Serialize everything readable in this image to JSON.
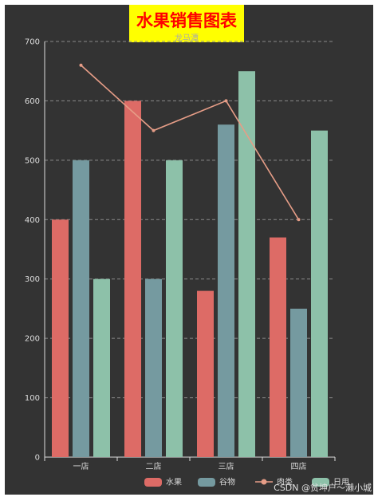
{
  "chart_data": {
    "type": "bar",
    "title": "水果销售图表",
    "subtitle": "龙马潭",
    "categories": [
      "一店",
      "二店",
      "三店",
      "四店"
    ],
    "series": [
      {
        "name": "水果",
        "type": "bar",
        "color": "#dd6b66",
        "values": [
          400,
          600,
          280,
          370
        ]
      },
      {
        "name": "谷物",
        "type": "bar",
        "color": "#759aa0",
        "values": [
          500,
          300,
          560,
          250
        ]
      },
      {
        "name": "肉类",
        "type": "line",
        "color": "#e69d87",
        "values": [
          660,
          550,
          600,
          400
        ]
      },
      {
        "name": "日用",
        "type": "bar",
        "color": "#8dc1a9",
        "values": [
          300,
          500,
          650,
          550
        ]
      }
    ],
    "ylim": [
      0,
      700
    ],
    "yticks": [
      0,
      100,
      200,
      300,
      400,
      500,
      600,
      700
    ],
    "grid": true,
    "legend_position": "bottom-right",
    "background": "#333333"
  },
  "watermark": "CSDN @贫坤户～濑小城"
}
